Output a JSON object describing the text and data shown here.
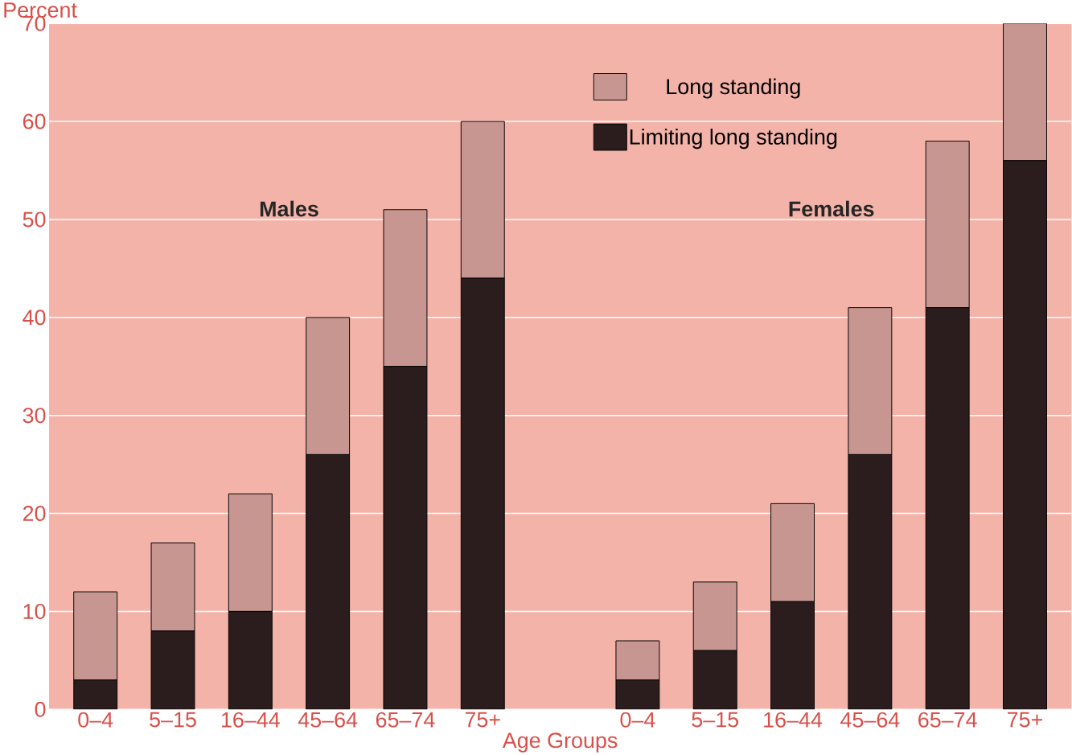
{
  "chart_data": {
    "type": "bar",
    "stacked": true,
    "xlabel": "Age Groups",
    "ylabel": "Percent",
    "categories": [
      "0–4",
      "5–15",
      "16–44",
      "45–64",
      "65–74",
      "75+",
      null,
      "0–4",
      "5–15",
      "16–44",
      "45–64",
      "65–74",
      "75+"
    ],
    "series": [
      {
        "name": "Limiting long standing",
        "color": "#2b1d1d",
        "values": [
          3,
          8,
          10,
          26,
          35,
          44,
          null,
          3,
          6,
          11,
          26,
          41,
          56
        ]
      },
      {
        "name": "Long standing",
        "color": "#c79691",
        "values": [
          9,
          9,
          12,
          14,
          16,
          16,
          null,
          4,
          7,
          10,
          15,
          17,
          14
        ]
      }
    ],
    "ylim": [
      0,
      70
    ],
    "yticks": [
      0,
      10,
      20,
      30,
      40,
      50,
      60,
      70
    ],
    "grid": "y",
    "legend": "top right",
    "annotations": [
      "**Males**",
      "**Females**"
    ]
  }
}
